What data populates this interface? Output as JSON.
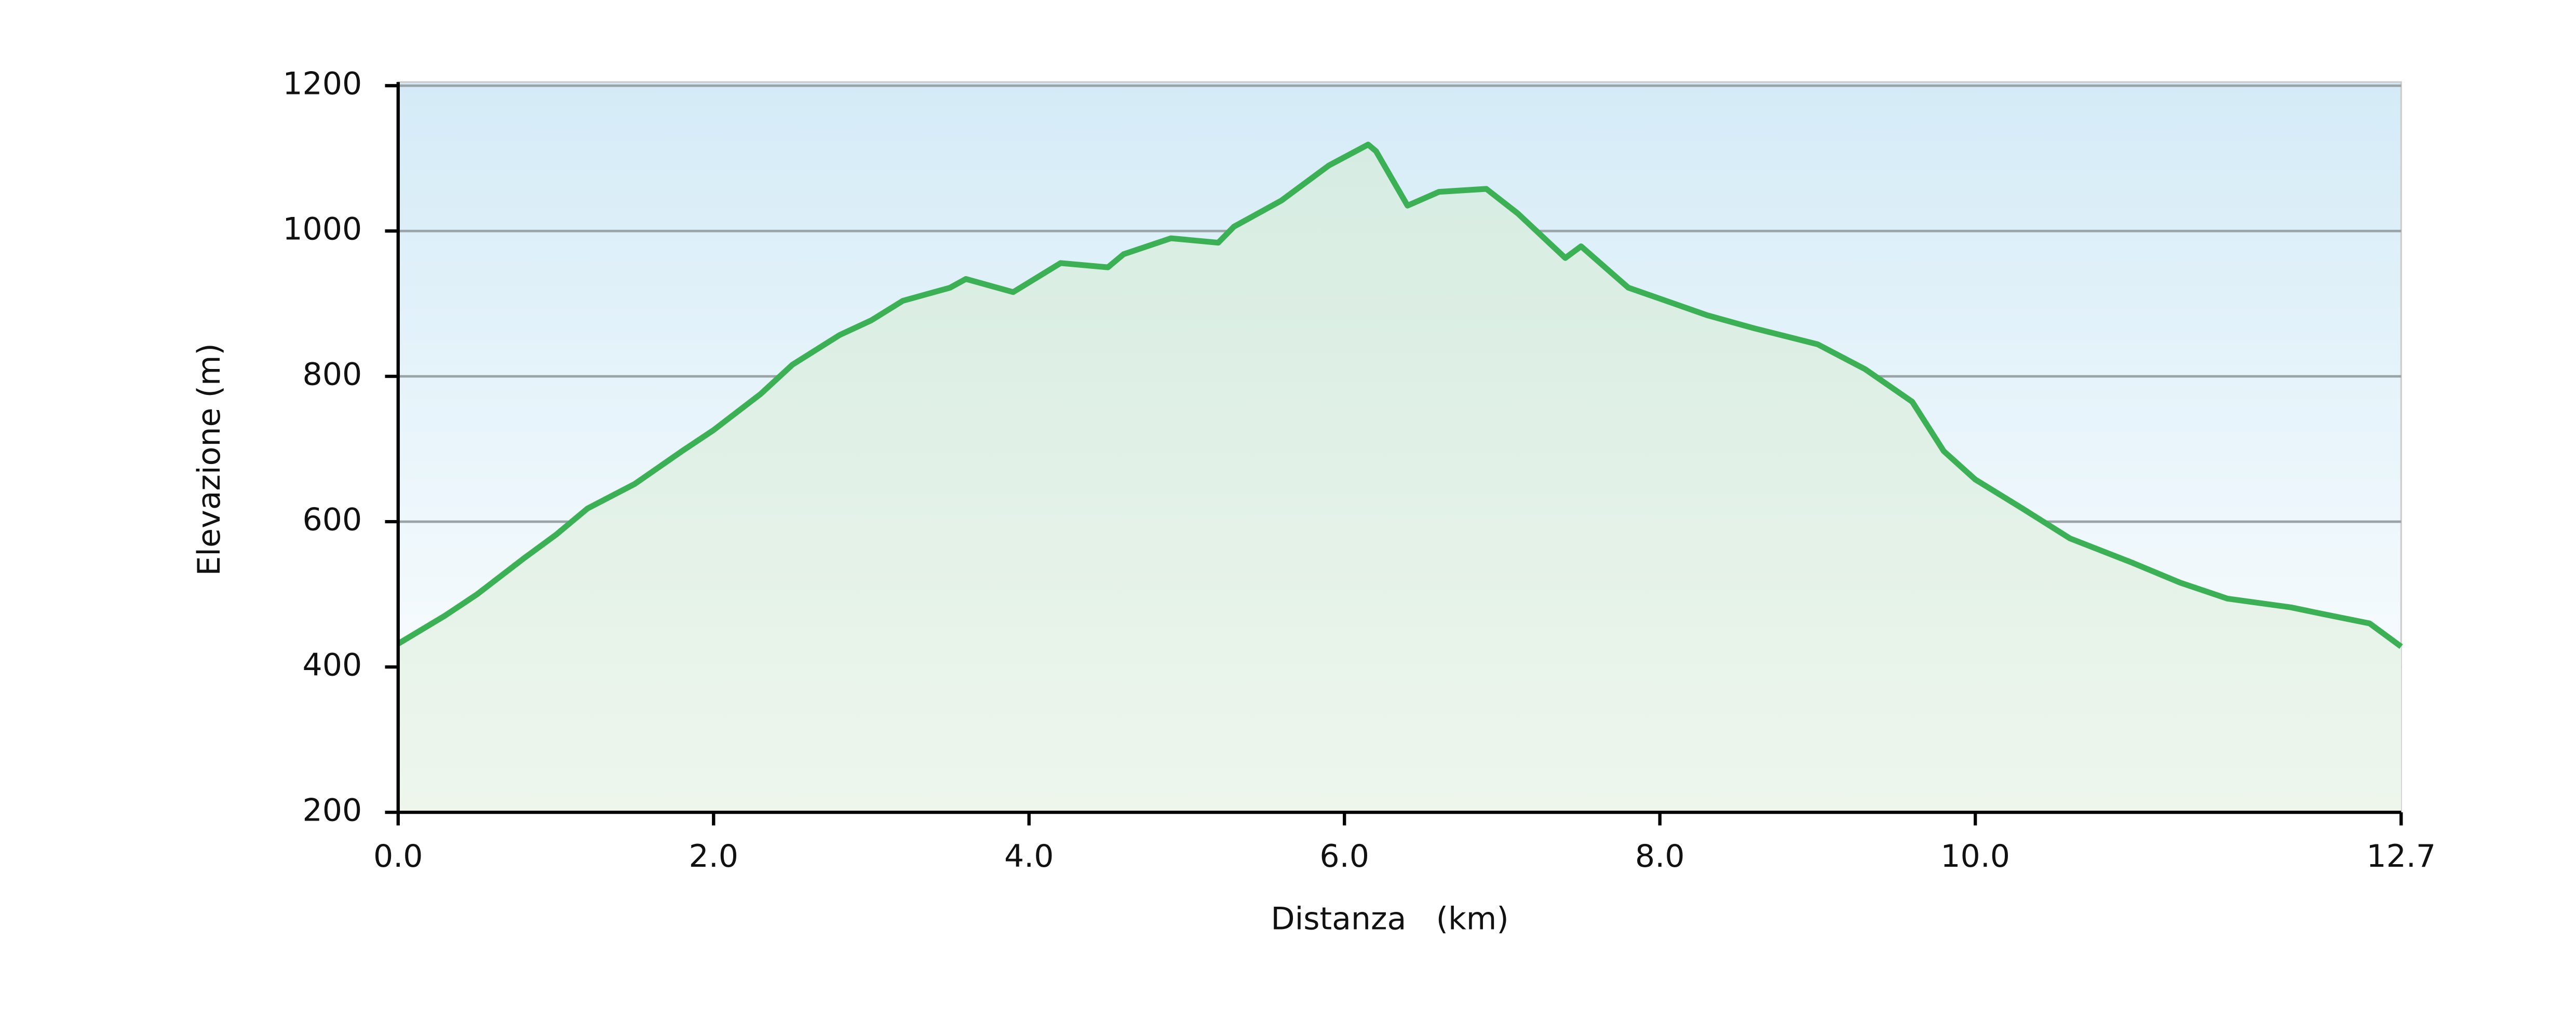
{
  "chart_data": {
    "type": "area",
    "x_label": "Distanza   (km)",
    "y_label": "Elevazione (m)",
    "x": [
      0,
      0.3,
      0.5,
      0.8,
      1.0,
      1.2,
      1.5,
      1.8,
      2.0,
      2.3,
      2.5,
      2.8,
      3.0,
      3.2,
      3.5,
      3.6,
      3.9,
      4.2,
      4.5,
      4.6,
      4.9,
      5.2,
      5.3,
      5.6,
      5.9,
      6.15,
      6.2,
      6.4,
      6.6,
      6.9,
      7.1,
      7.4,
      7.5,
      7.8,
      8.0,
      8.3,
      8.6,
      9.0,
      9.3,
      9.6,
      9.8,
      10.0,
      10.3,
      10.6,
      11.0,
      11.3,
      11.6,
      12.0,
      12.2,
      12.5,
      12.7
    ],
    "series": [
      {
        "color": "#3cb054",
        "values": [
          432,
          471,
          500,
          550,
          582,
          618,
          652,
          697,
          726,
          776,
          816,
          857,
          877,
          904,
          922,
          934,
          916,
          956,
          950,
          968,
          990,
          984,
          1006,
          1042,
          1090,
          1119,
          1110,
          1035,
          1054,
          1058,
          1024,
          963,
          979,
          922,
          907,
          884,
          866,
          844,
          810,
          765,
          697,
          658,
          618,
          577,
          543,
          516,
          494,
          482,
          473,
          460,
          428
        ]
      }
    ],
    "xlim": [
      0,
      12.7
    ],
    "xticks": [
      {
        "value": 0,
        "label": "0.0"
      },
      {
        "value": 2,
        "label": "2.0"
      },
      {
        "value": 4,
        "label": "4.0"
      },
      {
        "value": 6,
        "label": "6.0"
      },
      {
        "value": 8,
        "label": "8.0"
      },
      {
        "value": 10,
        "label": "10.0"
      },
      12.7
    ],
    "ylim": [
      200,
      1205
    ],
    "yticks": [
      200,
      400,
      600,
      800,
      1000,
      1200
    ],
    "grid": true
  }
}
